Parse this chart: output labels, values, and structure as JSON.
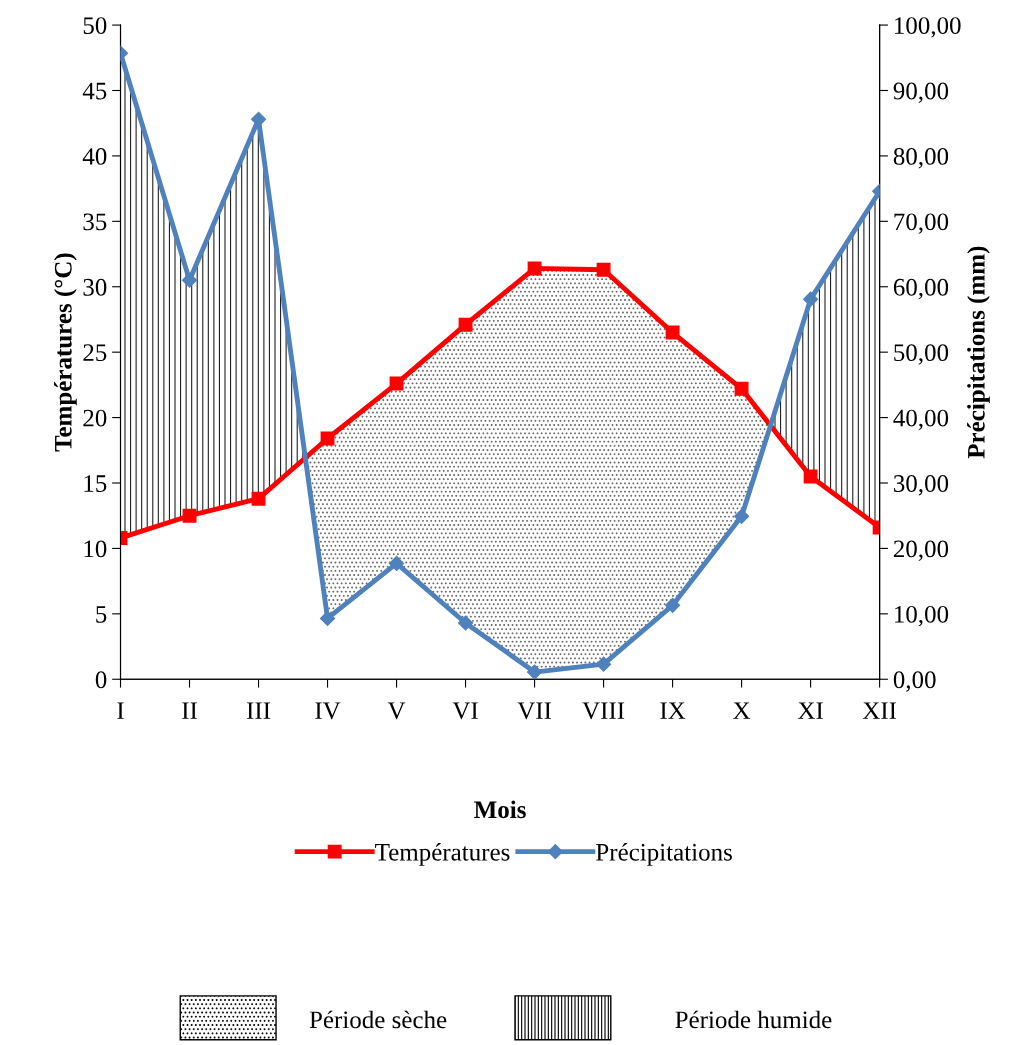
{
  "chart_data": {
    "type": "line",
    "xlabel": "Mois",
    "ylabel": "Températures (°C)",
    "y2label": "Précipitations (mm)",
    "categories": [
      "I",
      "II",
      "III",
      "IV",
      "V",
      "VI",
      "VII",
      "VIII",
      "IX",
      "X",
      "XI",
      "XII"
    ],
    "series": [
      {
        "name": "Températures",
        "color": "#ff0000",
        "marker": "square",
        "values": [
          10.8,
          12.5,
          13.8,
          18.4,
          22.6,
          27.1,
          31.4,
          31.3,
          26.5,
          22.2,
          15.5,
          11.6
        ]
      },
      {
        "name": "Précipitations",
        "color": "#4f81bd",
        "marker": "diamond",
        "axis": "y2",
        "values": [
          95.7,
          61.0,
          85.6,
          9.3,
          17.7,
          8.6,
          1.1,
          2.3,
          11.3,
          24.9,
          58.1,
          74.6
        ]
      }
    ],
    "ylim": [
      0,
      50
    ],
    "yticks": [
      0,
      5,
      10,
      15,
      20,
      25,
      30,
      35,
      40,
      45,
      50
    ],
    "y2lim": [
      0,
      100
    ],
    "y2ticks": [
      {
        "value": 0,
        "label": "0,00"
      },
      {
        "value": 10,
        "label": "10,00"
      },
      {
        "value": 20,
        "label": "20,00"
      },
      {
        "value": 30,
        "label": "30,00"
      },
      {
        "value": 40,
        "label": "40,00"
      },
      {
        "value": 50,
        "label": "50,00"
      },
      {
        "value": 60,
        "label": "60,00"
      },
      {
        "value": 70,
        "label": "70,00"
      },
      {
        "value": 80,
        "label": "80,00"
      },
      {
        "value": 90,
        "label": "90,00"
      },
      {
        "value": 100,
        "label": "100,00"
      }
    ],
    "grid": false,
    "legend": "bottom",
    "line_style": "solid",
    "annotations": [
      "Période sèche",
      "Période humide"
    ]
  }
}
